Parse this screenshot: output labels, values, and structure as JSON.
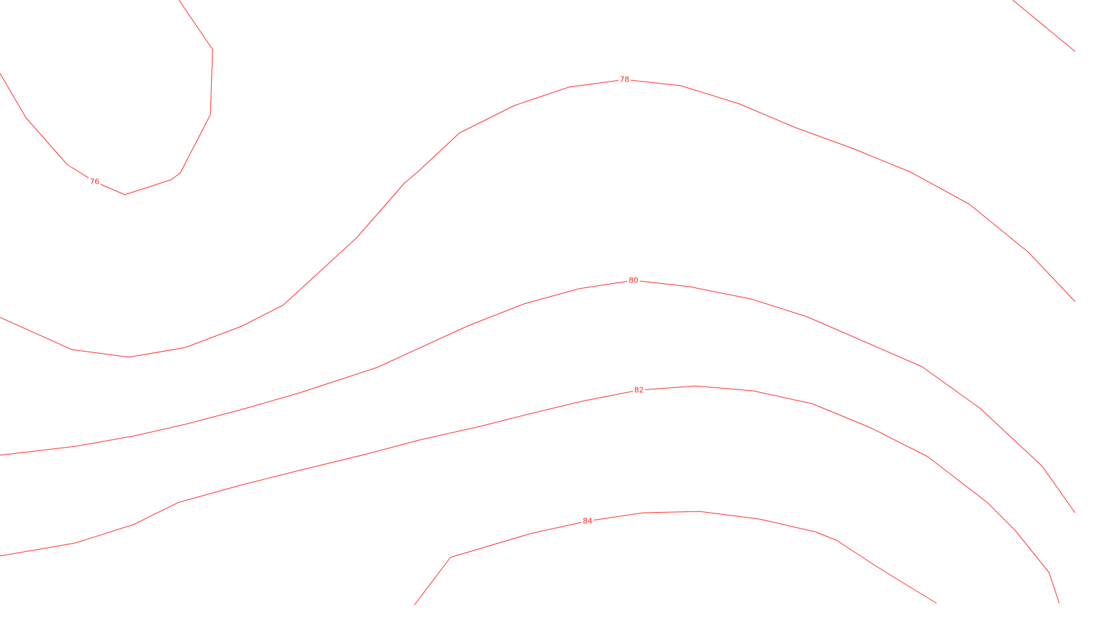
{
  "map": {
    "line_color": "#ff2a2a",
    "background": "#ffffff",
    "contours": [
      {
        "id": "contour-76",
        "label": "76"
      },
      {
        "id": "contour-78",
        "label": "78"
      },
      {
        "id": "contour-80",
        "label": "80"
      },
      {
        "id": "contour-82",
        "label": "82"
      },
      {
        "id": "contour-84",
        "label": "84"
      },
      {
        "id": "contour-top-right",
        "label": ""
      }
    ]
  }
}
